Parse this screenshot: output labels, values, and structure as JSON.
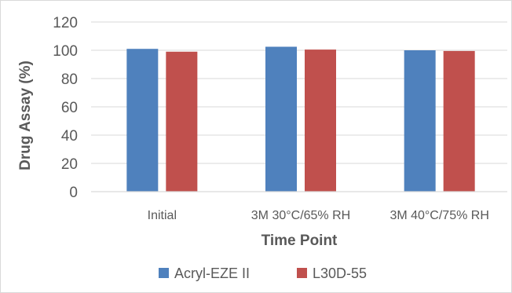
{
  "chart_data": {
    "type": "bar",
    "categories": [
      "Initial",
      "3M 30°C/65% RH",
      "3M 40°C/75% RH"
    ],
    "series": [
      {
        "name": "Acryl-EZE II",
        "color": "#4f81bd",
        "values": [
          101,
          102.5,
          100
        ]
      },
      {
        "name": "L30D-55",
        "color": "#c0504d",
        "values": [
          99,
          100.5,
          99.5
        ]
      }
    ],
    "title": "",
    "xlabel": "Time Point",
    "ylabel": "Drug Assay (%)",
    "ylim": [
      0,
      120
    ],
    "yticks": [
      0,
      20,
      40,
      60,
      80,
      100,
      120
    ],
    "grid": true,
    "legend_position": "bottom",
    "gridline_color": "#d9d9d9",
    "axis_color": "#d9d9d9",
    "text_color": "#595959"
  }
}
